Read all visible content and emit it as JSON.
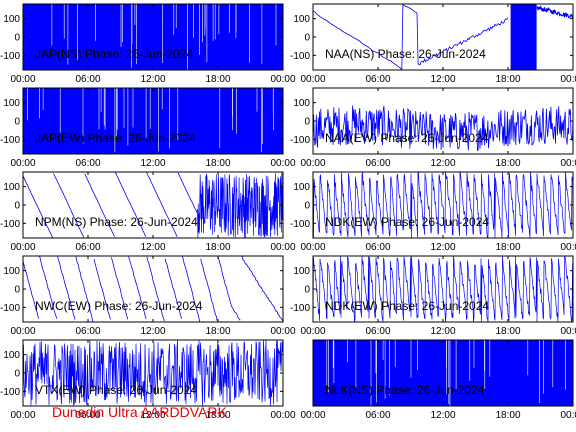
{
  "footer": "Dunedin Ultra AARDDVARK",
  "colors": {
    "trace": "#0000ff",
    "axes": "#000000",
    "footer": "#e8000b",
    "background": "#ffffff"
  },
  "chart_data": [
    {
      "type": "line",
      "title": "JAP(NS) Phase: 26-Jun-2024",
      "xlim": [
        "00:00",
        "24:00"
      ],
      "xticks": [
        "00:00",
        "06:00",
        "12:00",
        "18:00",
        "00:00"
      ],
      "ylim": [
        -180,
        180
      ],
      "yticks": [
        100,
        0,
        -100
      ],
      "pattern": "saturated",
      "grid": false
    },
    {
      "type": "line",
      "title": "NAA(NS) Phase: 26-Jun-2024",
      "xlim": [
        "00:00",
        "24:00"
      ],
      "xticks": [
        "00:00",
        "06:00",
        "12:00",
        "18:00",
        "00:00"
      ],
      "ylim": [
        -180,
        180
      ],
      "yticks": [
        100,
        0,
        -100
      ],
      "pattern": "drift_then_dense",
      "grid": false
    },
    {
      "type": "line",
      "title": "JAP(EW) Phase: 26-Jun-2024",
      "xlim": [
        "00:00",
        "24:00"
      ],
      "xticks": [
        "00:00",
        "06:00",
        "12:00",
        "18:00",
        "00:00"
      ],
      "ylim": [
        -180,
        180
      ],
      "yticks": [
        100,
        0,
        -100
      ],
      "pattern": "saturated",
      "grid": false
    },
    {
      "type": "line",
      "title": "NAA(EW) Phase: 26-Jun-2024",
      "xlim": [
        "00:00",
        "24:00"
      ],
      "xticks": [
        "00:00",
        "06:00",
        "12:00",
        "18:00",
        "00:00"
      ],
      "ylim": [
        -180,
        180
      ],
      "yticks": [
        100,
        0,
        -100
      ],
      "pattern": "noisy_band",
      "grid": false
    },
    {
      "type": "line",
      "title": "NPM(NS) Phase: 26-Jun-2024",
      "xlim": [
        "00:00",
        "24:00"
      ],
      "xticks": [
        "00:00",
        "06:00",
        "12:00",
        "18:00",
        "00:00"
      ],
      "ylim": [
        -180,
        180
      ],
      "yticks": [
        100,
        0,
        -100
      ],
      "pattern": "slow_wraps_then_dense",
      "grid": false
    },
    {
      "type": "line",
      "title": "NDK(EW) Phase: 26-Jun-2024",
      "xlim": [
        "00:00",
        "24:00"
      ],
      "xticks": [
        "00:00",
        "06:00",
        "12:00",
        "18:00",
        "00:00"
      ],
      "ylim": [
        -180,
        180
      ],
      "yticks": [
        100,
        0,
        -100
      ],
      "pattern": "fast_wraps",
      "grid": false
    },
    {
      "type": "line",
      "title": "NWC(EW) Phase: 26-Jun-2024",
      "xlim": [
        "00:00",
        "24:00"
      ],
      "xticks": [
        "00:00",
        "06:00",
        "12:00",
        "18:00",
        "00:00"
      ],
      "ylim": [
        -180,
        180
      ],
      "yticks": [
        100,
        0,
        -100
      ],
      "pattern": "sawtooth_wraps",
      "grid": false
    },
    {
      "type": "line",
      "title": "NDK(EW) Phase: 26-Jun-2024",
      "xlim": [
        "00:00",
        "24:00"
      ],
      "xticks": [
        "00:00",
        "06:00",
        "12:00",
        "18:00",
        "00:00"
      ],
      "ylim": [
        -180,
        180
      ],
      "yticks": [
        100,
        0,
        -100
      ],
      "pattern": "fast_wraps",
      "grid": false
    },
    {
      "type": "line",
      "title": "VTX(EW) Phase: 26-Jun-2024",
      "xlim": [
        "00:00",
        "24:00"
      ],
      "xticks": [
        "00:00",
        "06:00",
        "12:00",
        "18:00",
        "00:00"
      ],
      "ylim": [
        -180,
        180
      ],
      "yticks": [
        100,
        0,
        -100
      ],
      "pattern": "noisy_wraps",
      "grid": false
    },
    {
      "type": "line",
      "title": "NLK(NS) Phase: 26-Jun-2024",
      "xlim": [
        "00:00",
        "24:00"
      ],
      "xticks": [
        "00:00",
        "06:00",
        "12:00",
        "18:00",
        "00:00"
      ],
      "ylim": [
        -180,
        180
      ],
      "yticks": [],
      "pattern": "saturated",
      "grid": false
    }
  ]
}
